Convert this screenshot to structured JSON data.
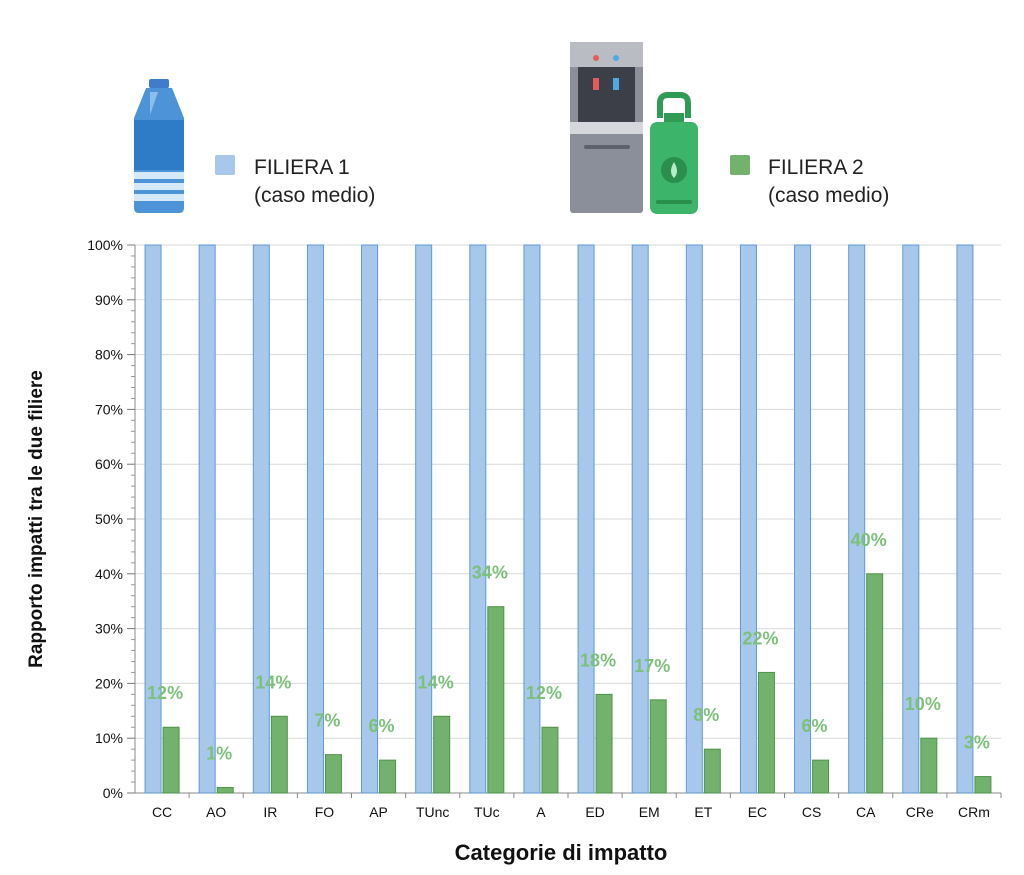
{
  "chart_data": {
    "type": "bar",
    "categories": [
      "CC",
      "AO",
      "IR",
      "FO",
      "AP",
      "TUnc",
      "TUc",
      "A",
      "ED",
      "EM",
      "ET",
      "EC",
      "CS",
      "CA",
      "CRe",
      "CRm"
    ],
    "series": [
      {
        "name": "FILIERA 1",
        "subtitle": "(caso medio)",
        "color": "#a7c8ea",
        "values": [
          100,
          100,
          100,
          100,
          100,
          100,
          100,
          100,
          100,
          100,
          100,
          100,
          100,
          100,
          100,
          100
        ]
      },
      {
        "name": "FILIERA 2",
        "subtitle": "(caso medio)",
        "color": "#72b26c",
        "values": [
          12,
          1,
          14,
          7,
          6,
          14,
          34,
          12,
          18,
          17,
          8,
          22,
          6,
          40,
          10,
          3
        ]
      }
    ],
    "data_labels": [
      "12%",
      "1%",
      "14%",
      "7%",
      "6%",
      "14%",
      "34%",
      "12%",
      "18%",
      "17%",
      "8%",
      "22%",
      "6%",
      "40%",
      "10%",
      "3%"
    ],
    "y_ticks": [
      "0%",
      "10%",
      "20%",
      "30%",
      "40%",
      "50%",
      "60%",
      "70%",
      "80%",
      "90%",
      "100%"
    ],
    "ylim": [
      0,
      100
    ],
    "xlabel": "Categorie di impatto",
    "ylabel": "Rapporto impatti tra le due filiere",
    "grid": true,
    "legend_position": "top",
    "icons": [
      "water-bottle-icon",
      "water-dispenser-icon",
      "water-jug-icon"
    ]
  }
}
